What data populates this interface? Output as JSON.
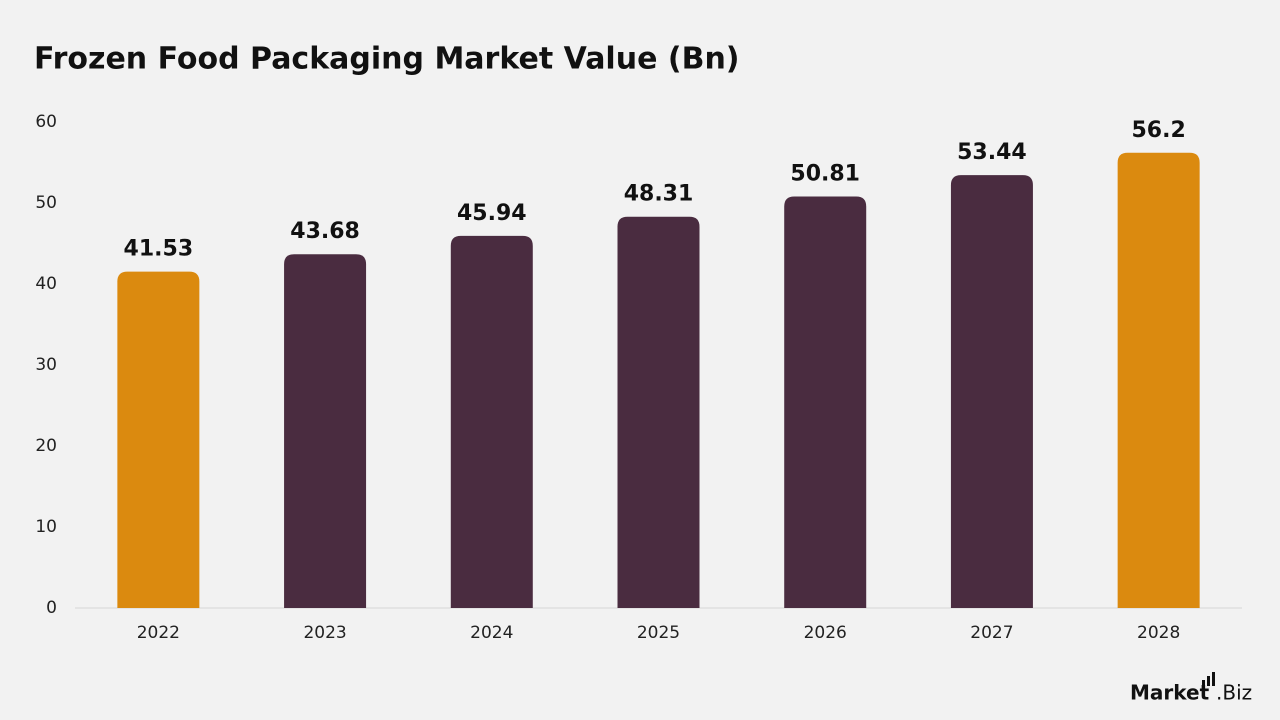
{
  "chart_data": {
    "type": "bar",
    "title": "Frozen Food Packaging Market Value (Bn)",
    "categories": [
      "2022",
      "2023",
      "2024",
      "2025",
      "2026",
      "2027",
      "2028"
    ],
    "values": [
      41.53,
      43.68,
      45.94,
      48.31,
      50.81,
      53.44,
      56.2
    ],
    "colors": [
      "#db8a0f",
      "#4a2c40",
      "#4a2c40",
      "#4a2c40",
      "#4a2c40",
      "#4a2c40",
      "#db8a0f"
    ],
    "ylim": [
      0,
      60
    ],
    "yticks": [
      0,
      10,
      20,
      30,
      40,
      50,
      60
    ],
    "grid": false
  },
  "logo": {
    "name": "Market",
    "suffix": ".Biz"
  }
}
